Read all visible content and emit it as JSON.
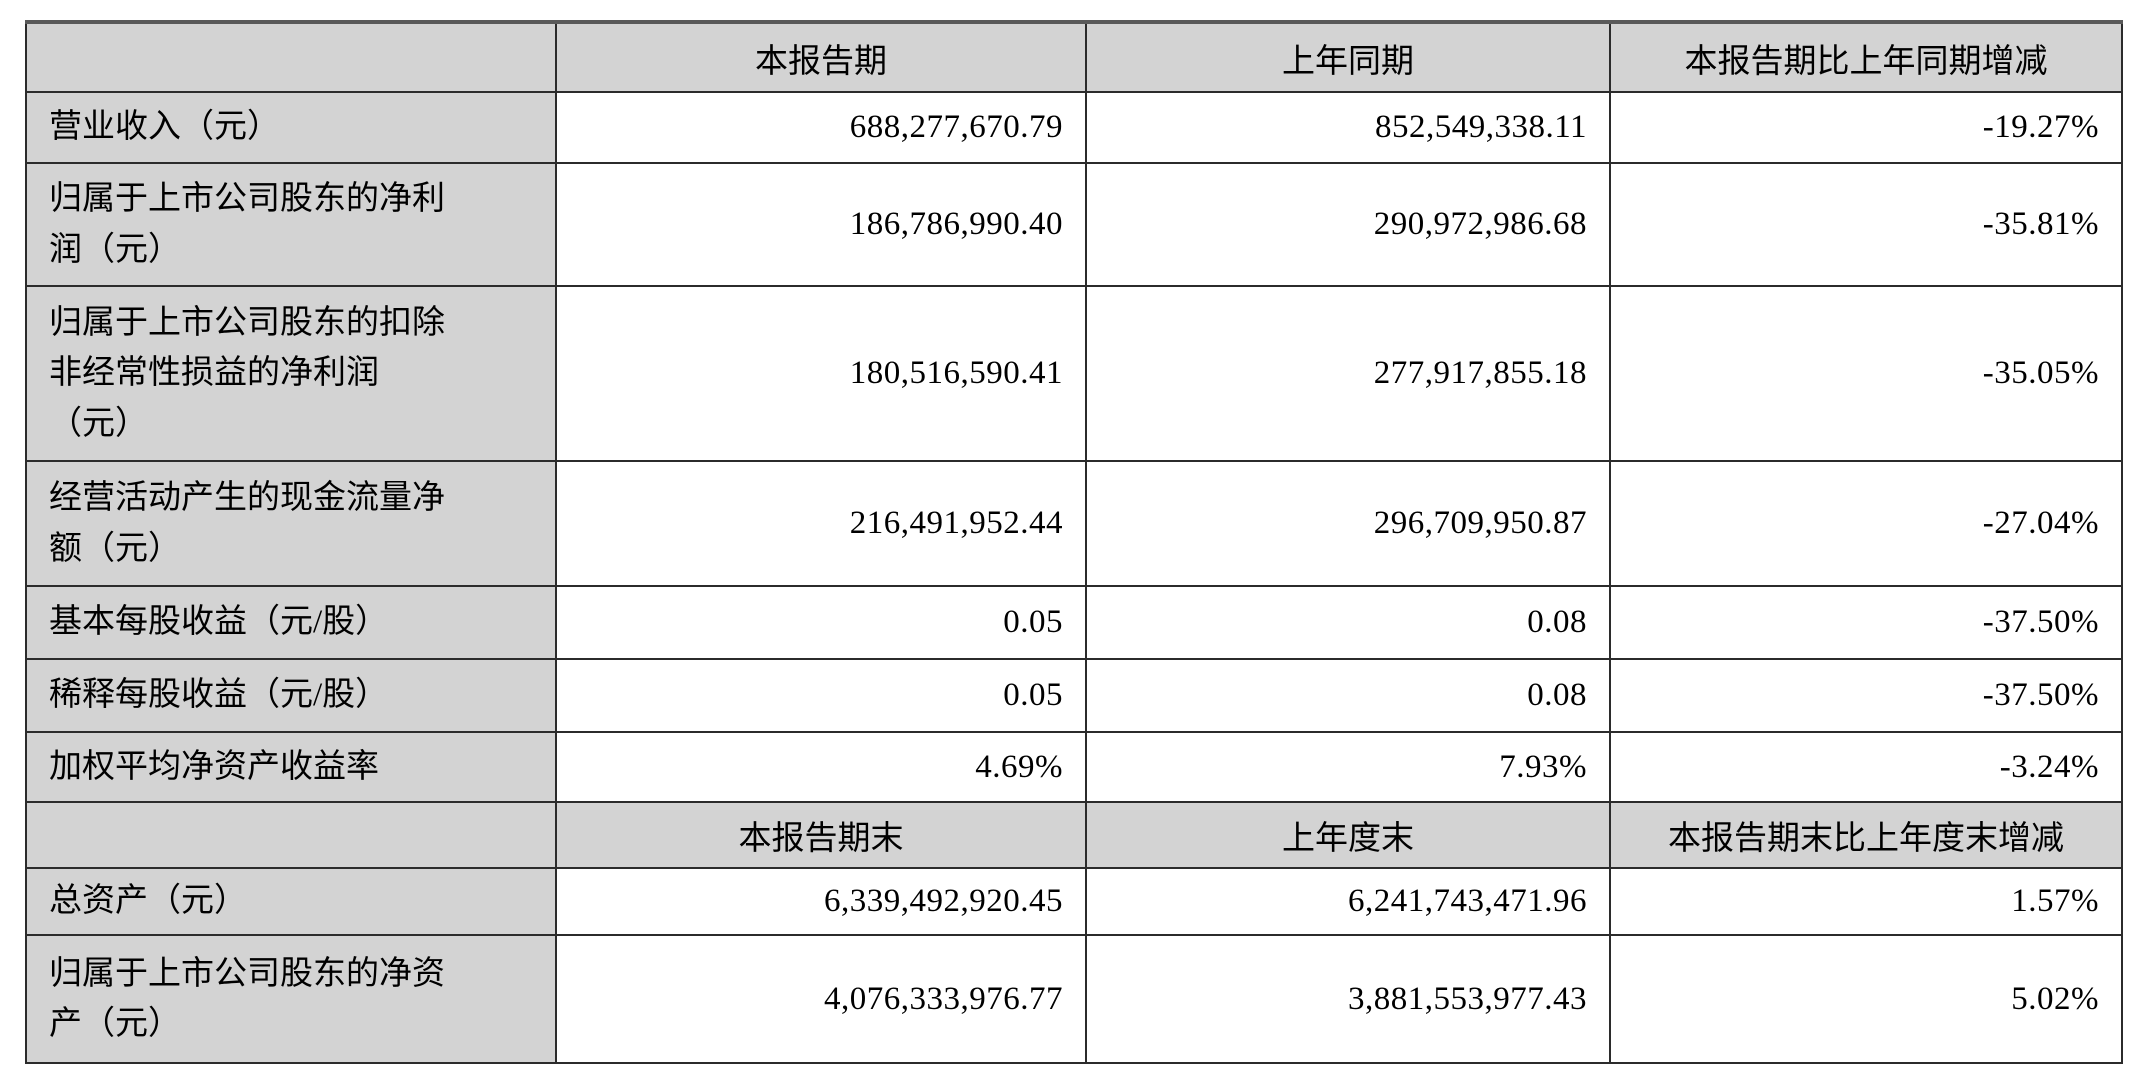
{
  "table": {
    "sections": [
      {
        "header": [
          "",
          "本报告期",
          "上年同期",
          "本报告期比上年同期增减"
        ],
        "rows": [
          {
            "label": "营业收入（元）",
            "current": "688,277,670.79",
            "prior": "852,549,338.11",
            "change": "-19.27%"
          },
          {
            "label": "归属于上市公司股东的净利\n润（元）",
            "current": "186,786,990.40",
            "prior": "290,972,986.68",
            "change": "-35.81%"
          },
          {
            "label": "归属于上市公司股东的扣除\n非经常性损益的净利润\n（元）",
            "current": "180,516,590.41",
            "prior": "277,917,855.18",
            "change": "-35.05%"
          },
          {
            "label": "经营活动产生的现金流量净\n额（元）",
            "current": "216,491,952.44",
            "prior": "296,709,950.87",
            "change": "-27.04%"
          },
          {
            "label": "基本每股收益（元/股）",
            "current": "0.05",
            "prior": "0.08",
            "change": "-37.50%"
          },
          {
            "label": "稀释每股收益（元/股）",
            "current": "0.05",
            "prior": "0.08",
            "change": "-37.50%"
          },
          {
            "label": "加权平均净资产收益率",
            "current": "4.69%",
            "prior": "7.93%",
            "change": "-3.24%"
          }
        ]
      },
      {
        "header": [
          "",
          "本报告期末",
          "上年度末",
          "本报告期末比上年度末增减"
        ],
        "rows": [
          {
            "label": "总资产（元）",
            "current": "6,339,492,920.45",
            "prior": "6,241,743,471.96",
            "change": "1.57%"
          },
          {
            "label": "归属于上市公司股东的净资\n产（元）",
            "current": "4,076,333,976.77",
            "prior": "3,881,553,977.43",
            "change": "5.02%"
          }
        ]
      }
    ],
    "colors": {
      "header_fill": "#d3d3d3",
      "cell_fill": "#ffffff",
      "grid_line": "#2b2b2b",
      "text": "#000000"
    }
  }
}
